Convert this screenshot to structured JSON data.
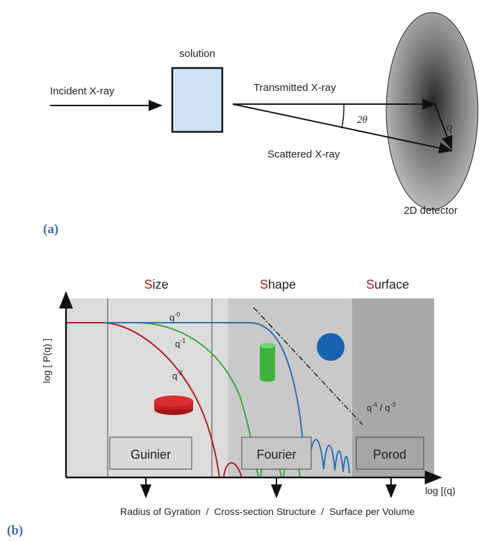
{
  "panel_a": {
    "label": "(a)",
    "solution": "solution",
    "incident": "Incident X-ray",
    "transmitted": "Transmitted X-ray",
    "scattered": "Scattered X-ray",
    "angle": "2θ",
    "q": "q",
    "detector": "2D detector"
  },
  "panel_b": {
    "label": "(b)",
    "headers": [
      {
        "initial": "S",
        "rest": "ize"
      },
      {
        "initial": "S",
        "rest": "hape"
      },
      {
        "initial": "S",
        "rest": "urface"
      }
    ],
    "y_axis": "log [ P(q) ]",
    "x_axis": "log [(q)",
    "slopes": [
      {
        "base": "q",
        "exp": "-0"
      },
      {
        "base": "q",
        "exp": "-1"
      },
      {
        "base": "q",
        "exp": "-2"
      }
    ],
    "porod_slope": {
      "base1": "q",
      "exp1": "-4",
      "sep": " / ",
      "base2": "q",
      "exp2": "-3"
    },
    "regimes": [
      "Guinier",
      "Fourier",
      "Porod"
    ],
    "caption": "Radius of Gyration  /  Cross-section Structure  /  Surface per Volume"
  }
}
